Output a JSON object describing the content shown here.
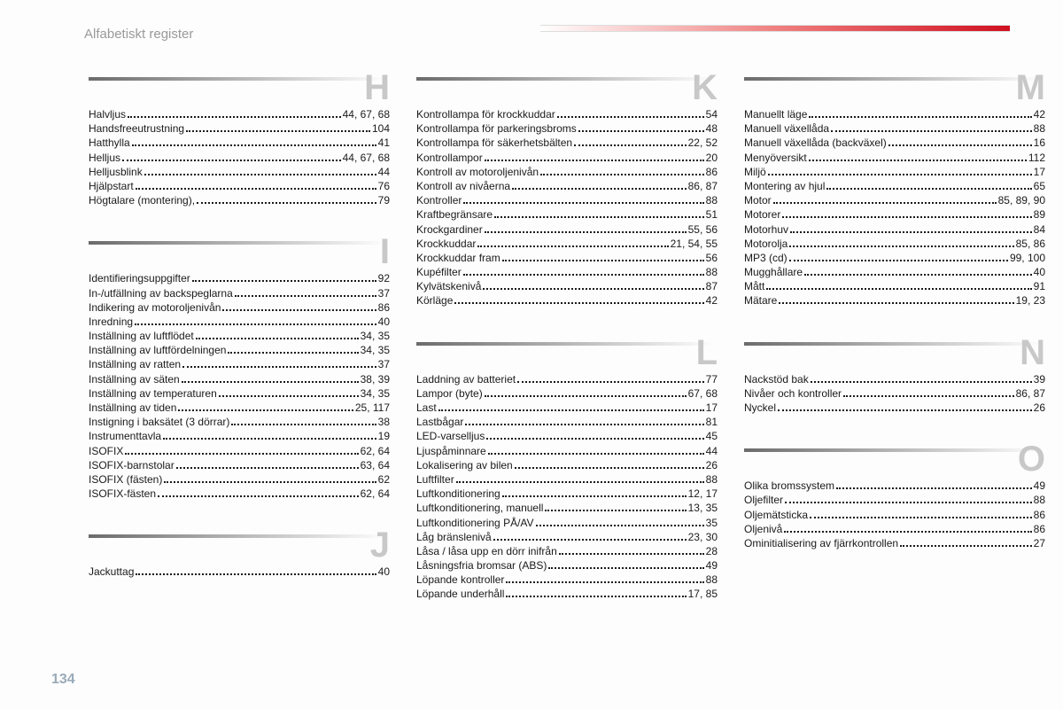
{
  "title": "Alfabetiskt register",
  "page_number": "134",
  "colors": {
    "title_text": "#9a9a9a",
    "letter_text": "#c8c8c8",
    "entry_text": "#1a1a1a",
    "page_num_text": "#9aaab8",
    "gradient_start": "#6b6b6b",
    "red_accent": "#d01020"
  },
  "columns": [
    [
      {
        "letter": "H",
        "entries": [
          {
            "label": "Halvljus",
            "pages": "44, 67, 68"
          },
          {
            "label": "Handsfreeutrustning",
            "pages": "104"
          },
          {
            "label": "Hatthylla",
            "pages": "41"
          },
          {
            "label": "Helljus",
            "pages": "44, 67, 68"
          },
          {
            "label": "Helljusblink",
            "pages": "44"
          },
          {
            "label": "Hjälpstart",
            "pages": "76"
          },
          {
            "label": "Högtalare (montering),",
            "pages": "79"
          }
        ]
      },
      {
        "letter": "I",
        "entries": [
          {
            "label": "Identifieringsuppgifter",
            "pages": "92"
          },
          {
            "label": "In-/utfällning av backspeglarna",
            "pages": "37"
          },
          {
            "label": "Indikering av motoroljenivån",
            "pages": "86"
          },
          {
            "label": "Inredning",
            "pages": "40"
          },
          {
            "label": "Inställning av luftflödet",
            "pages": "34, 35"
          },
          {
            "label": "Inställning av luftfördelningen",
            "pages": "34, 35"
          },
          {
            "label": "Inställning av ratten",
            "pages": "37"
          },
          {
            "label": "Inställning av säten",
            "pages": "38, 39"
          },
          {
            "label": "Inställning av temperaturen",
            "pages": "34, 35"
          },
          {
            "label": "Inställning av tiden",
            "pages": "25, 117"
          },
          {
            "label": "Instigning i baksätet (3 dörrar)",
            "pages": "38"
          },
          {
            "label": "Instrumenttavla",
            "pages": "19"
          },
          {
            "label": "ISOFIX",
            "pages": "62, 64"
          },
          {
            "label": "ISOFIX-barnstolar",
            "pages": "63, 64"
          },
          {
            "label": "ISOFIX (fästen)",
            "pages": "62"
          },
          {
            "label": "ISOFIX-fästen",
            "pages": "62, 64"
          }
        ]
      },
      {
        "letter": "J",
        "entries": [
          {
            "label": "Jackuttag",
            "pages": "40"
          }
        ]
      }
    ],
    [
      {
        "letter": "K",
        "entries": [
          {
            "label": "Kontrollampa för krockkuddar",
            "pages": "54"
          },
          {
            "label": "Kontrollampa för parkeringsbroms",
            "pages": "48"
          },
          {
            "label": "Kontrollampa för säkerhetsbälten",
            "pages": "22, 52"
          },
          {
            "label": "Kontrollampor",
            "pages": "20"
          },
          {
            "label": "Kontroll av motoroljenivån",
            "pages": "86"
          },
          {
            "label": "Kontroll av nivåerna",
            "pages": "86, 87"
          },
          {
            "label": "Kontroller",
            "pages": "88"
          },
          {
            "label": "Kraftbegränsare",
            "pages": "51"
          },
          {
            "label": "Krockgardiner",
            "pages": "55, 56"
          },
          {
            "label": "Krockkuddar",
            "pages": "21, 54, 55"
          },
          {
            "label": "Krockkuddar fram",
            "pages": "56"
          },
          {
            "label": "Kupéfilter",
            "pages": "88"
          },
          {
            "label": "Kylvätskenivå",
            "pages": "87"
          },
          {
            "label": "Körläge",
            "pages": "42"
          }
        ]
      },
      {
        "letter": "L",
        "entries": [
          {
            "label": "Laddning av batteriet",
            "pages": "77"
          },
          {
            "label": "Lampor (byte)",
            "pages": "67, 68"
          },
          {
            "label": "Last",
            "pages": "17"
          },
          {
            "label": "Lastbågar",
            "pages": "81"
          },
          {
            "label": "LED-varselljus",
            "pages": "45"
          },
          {
            "label": "Ljuspåminnare",
            "pages": "44"
          },
          {
            "label": "Lokalisering av bilen",
            "pages": "26"
          },
          {
            "label": "Luftfilter",
            "pages": "88"
          },
          {
            "label": "Luftkonditionering",
            "pages": "12, 17"
          },
          {
            "label": "Luftkonditionering, manuell",
            "pages": "13, 35"
          },
          {
            "label": "Luftkonditionering PÅ/AV",
            "pages": "35"
          },
          {
            "label": "Låg bränslenivå",
            "pages": "23, 30"
          },
          {
            "label": "Låsa / låsa upp en dörr inifrån",
            "pages": "28"
          },
          {
            "label": "Låsningsfria bromsar (ABS)",
            "pages": "49"
          },
          {
            "label": "Löpande kontroller",
            "pages": "88"
          },
          {
            "label": "Löpande underhåll",
            "pages": "17, 85"
          }
        ]
      }
    ],
    [
      {
        "letter": "M",
        "entries": [
          {
            "label": "Manuellt läge",
            "pages": "42"
          },
          {
            "label": "Manuell växellåda",
            "pages": "88"
          },
          {
            "label": "Manuell växellåda (backväxel)",
            "pages": "16"
          },
          {
            "label": "Menyöversikt",
            "pages": "112"
          },
          {
            "label": "Miljö",
            "pages": "17"
          },
          {
            "label": "Montering av hjul",
            "pages": "65"
          },
          {
            "label": "Motor",
            "pages": "85, 89, 90"
          },
          {
            "label": "Motorer",
            "pages": "89"
          },
          {
            "label": "Motorhuv",
            "pages": "84"
          },
          {
            "label": "Motorolja",
            "pages": "85, 86"
          },
          {
            "label": "MP3 (cd)",
            "pages": "99, 100"
          },
          {
            "label": "Mugghållare",
            "pages": "40"
          },
          {
            "label": "Mått",
            "pages": "91"
          },
          {
            "label": "Mätare",
            "pages": "19, 23"
          }
        ]
      },
      {
        "letter": "N",
        "entries": [
          {
            "label": "Nackstöd bak",
            "pages": "39"
          },
          {
            "label": "Nivåer och kontroller",
            "pages": "86, 87"
          },
          {
            "label": "Nyckel",
            "pages": "26"
          }
        ]
      },
      {
        "letter": "O",
        "entries": [
          {
            "label": "Olika bromssystem",
            "pages": "49"
          },
          {
            "label": "Oljefilter",
            "pages": "88"
          },
          {
            "label": "Oljemätsticka",
            "pages": "86"
          },
          {
            "label": "Oljenivå",
            "pages": "86"
          },
          {
            "label": "Ominitialisering av fjärrkontrollen",
            "pages": "27"
          }
        ]
      }
    ]
  ]
}
